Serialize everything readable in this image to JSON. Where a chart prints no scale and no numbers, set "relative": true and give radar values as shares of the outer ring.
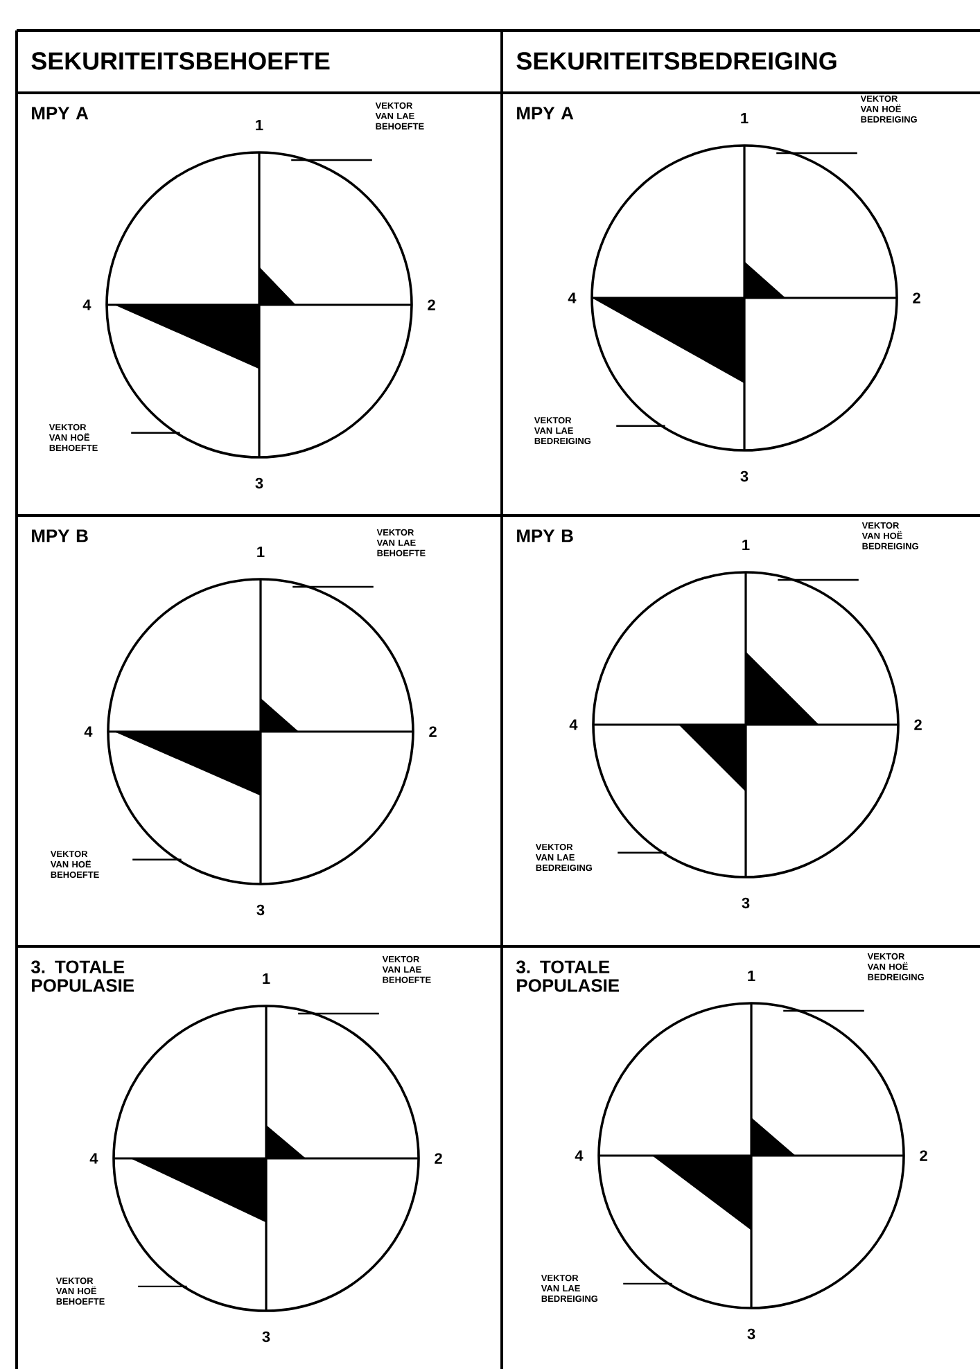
{
  "chart_data": [
    {
      "type": "radar",
      "title": "SEKURITEITSBEHOEFTE",
      "subtitle": "MPY A",
      "categories": [
        "1",
        "2",
        "3",
        "4"
      ],
      "relative": true,
      "series": [
        {
          "color": "#000000",
          "values": [
            0.25,
            0.24,
            0.42,
            0.95
          ]
        }
      ],
      "annotations": [
        "VEKTOR VAN LAE BEHOEFTE",
        "VEKTOR VAN HOË BEHOEFTE"
      ]
    },
    {
      "type": "radar",
      "title": "SEKURITEITSBEDREIGING",
      "subtitle": "MPY A",
      "categories": [
        "1",
        "2",
        "3",
        "4"
      ],
      "relative": true,
      "series": [
        {
          "color": "#000000",
          "values": [
            0.24,
            0.27,
            0.56,
            1.0
          ]
        }
      ],
      "annotations": [
        "VEKTOR VAN HOË BEDREIGING",
        "VEKTOR VAN LAE BEDREIGING"
      ]
    },
    {
      "type": "radar",
      "title": "MPY B",
      "categories": [
        "1",
        "2",
        "3",
        "4"
      ],
      "relative": true,
      "series": [
        {
          "color": "#000000",
          "values": [
            0.22,
            0.25,
            0.42,
            0.96
          ]
        }
      ],
      "annotations": [
        "VEKTOR VAN LAE BEHOEFTE",
        "VEKTOR VAN HOË BEHOEFTE"
      ]
    },
    {
      "type": "radar",
      "title": "MPY B",
      "categories": [
        "1",
        "2",
        "3",
        "4"
      ],
      "relative": true,
      "series": [
        {
          "color": "#000000",
          "values": [
            0.48,
            0.48,
            0.44,
            0.44
          ]
        }
      ],
      "annotations": [
        "VEKTOR VAN HOË BEDREIGING",
        "VEKTOR VAN LAE BEDREIGING"
      ]
    },
    {
      "type": "radar",
      "title": "3. TOTALE POPULASIE",
      "categories": [
        "1",
        "2",
        "3",
        "4"
      ],
      "relative": true,
      "series": [
        {
          "color": "#000000",
          "values": [
            0.22,
            0.26,
            0.42,
            0.89
          ]
        }
      ],
      "annotations": [
        "VEKTOR VAN LAE BEHOEFTE",
        "VEKTOR VAN HOË BEHOEFTE"
      ]
    },
    {
      "type": "radar",
      "title": "3. TOTALE POPULASIE",
      "categories": [
        "1",
        "2",
        "3",
        "4"
      ],
      "relative": true,
      "series": [
        {
          "color": "#000000",
          "values": [
            0.25,
            0.29,
            0.49,
            0.65
          ]
        }
      ],
      "annotations": [
        "VEKTOR VAN HOË BEDREIGING",
        "VEKTOR VAN LAE BEDREIGING"
      ]
    }
  ]
}
